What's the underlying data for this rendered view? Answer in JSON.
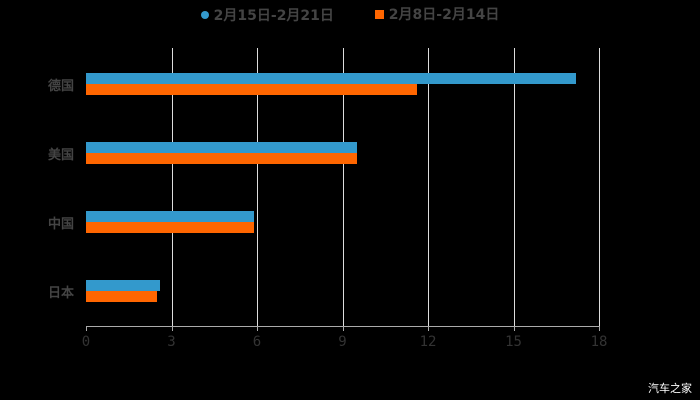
{
  "chart_data": {
    "type": "bar",
    "orientation": "horizontal",
    "categories": [
      "德国",
      "美国",
      "中国",
      "日本"
    ],
    "series": [
      {
        "name": "2月15日-2月21日",
        "color": "#3399CC",
        "values": [
          17.2,
          9.5,
          5.9,
          2.6
        ]
      },
      {
        "name": "2月8日-2月14日",
        "color": "#FF6600",
        "values": [
          11.6,
          9.5,
          5.9,
          2.5
        ]
      }
    ],
    "title": "",
    "xlabel": "",
    "ylabel": "",
    "xlim": [
      0,
      18
    ],
    "xticks": [
      "0",
      "3",
      "6",
      "9",
      "12",
      "15",
      "18"
    ],
    "grid": true,
    "legend_position": "top"
  },
  "watermark": "汽车之家"
}
